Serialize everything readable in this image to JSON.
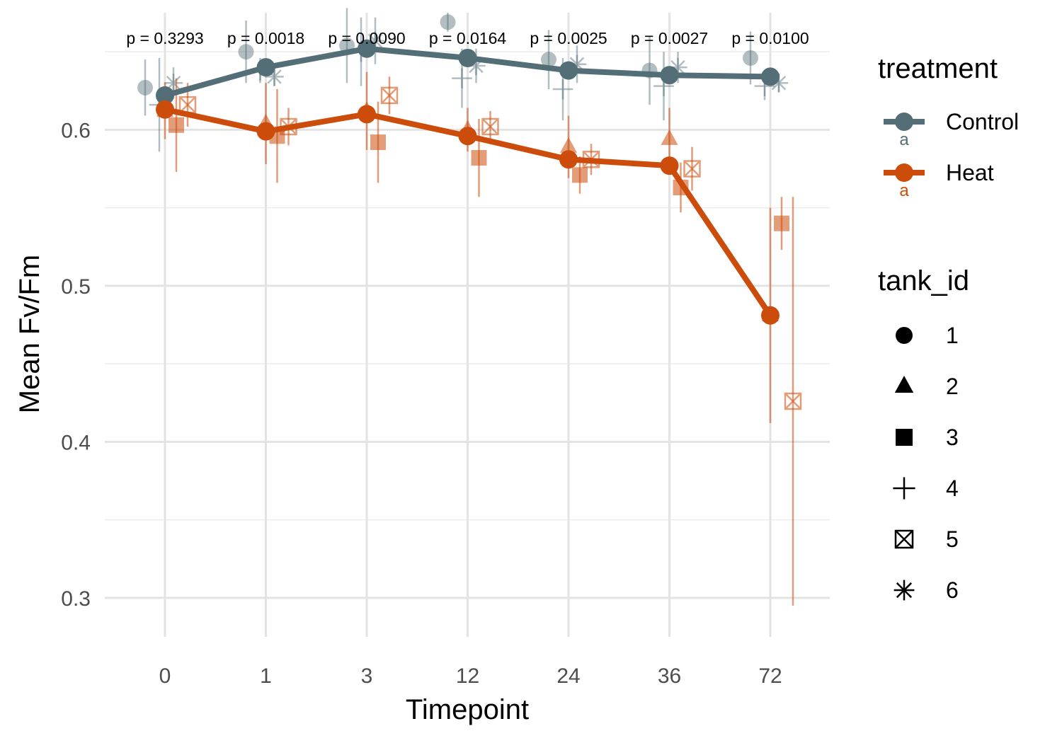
{
  "chart_data": {
    "type": "line",
    "title": "",
    "xlabel": "Timepoint",
    "ylabel": "Mean Fv/Fm",
    "categories": [
      "0",
      "1",
      "3",
      "12",
      "24",
      "36",
      "72"
    ],
    "ylim": [
      0.275,
      0.675
    ],
    "yticks": [
      0.3,
      0.4,
      0.5,
      0.6
    ],
    "ytick_labels": [
      "0.3",
      "0.4",
      "0.5",
      "0.6"
    ],
    "grid": true,
    "legend_position": "right",
    "p_values": [
      "p = 0.3293",
      "p = 0.0018",
      "p = 0.0090",
      "p = 0.0164",
      "p = 0.0025",
      "p = 0.0027",
      "p = 0.0100"
    ],
    "colors": {
      "Control": "#546e78",
      "Heat": "#cc4c0b"
    },
    "series": [
      {
        "name": "Control",
        "values": [
          0.622,
          0.64,
          0.652,
          0.646,
          0.638,
          0.635,
          0.634
        ]
      },
      {
        "name": "Heat",
        "values": [
          0.613,
          0.599,
          0.61,
          0.596,
          0.581,
          0.577,
          0.481
        ]
      }
    ],
    "tank_points": {
      "Control": [
        {
          "tank": "1",
          "values": [
            0.627,
            0.65,
            0.654,
            0.669,
            0.645,
            0.638,
            0.646
          ],
          "errors": [
            0.018,
            0.02,
            0.024,
            0.006,
            0.019,
            0.022,
            0.017
          ]
        },
        {
          "tank": "4",
          "values": [
            0.616,
            0.638,
            0.65,
            0.633,
            0.626,
            0.628,
            0.628
          ],
          "errors": [
            0.03,
            0.008,
            0.022,
            0.019,
            0.02,
            0.022,
            0.009
          ]
        },
        {
          "tank": "6",
          "values": [
            0.63,
            0.634,
            0.657,
            0.641,
            0.642,
            0.64,
            0.63
          ],
          "errors": [
            0.01,
            0.006,
            0.015,
            0.011,
            0.012,
            0.01,
            0.006
          ]
        }
      ],
      "Heat": [
        {
          "tank": "2",
          "values": [
            0.612,
            0.604,
            0.612,
            0.6,
            0.589,
            0.594,
            0.481
          ],
          "errors": [
            0.018,
            0.026,
            0.025,
            0.014,
            0.02,
            0.02,
            0.069
          ]
        },
        {
          "tank": "3",
          "values": [
            0.603,
            0.596,
            0.592,
            0.582,
            0.571,
            0.563,
            0.54
          ],
          "errors": [
            0.03,
            0.03,
            0.026,
            0.025,
            0.012,
            0.016,
            0.017
          ]
        },
        {
          "tank": "5",
          "values": [
            0.616,
            0.602,
            0.622,
            0.602,
            0.581,
            0.575,
            0.426
          ],
          "errors": [
            0.014,
            0.012,
            0.012,
            0.01,
            0.01,
            0.014,
            0.131
          ]
        }
      ]
    }
  },
  "legend": {
    "treatment_title": "treatment",
    "treatment_items": [
      {
        "label": "Control",
        "key_text": "a"
      },
      {
        "label": "Heat",
        "key_text": "a"
      }
    ],
    "tank_title": "tank_id",
    "tank_items": [
      {
        "label": "1",
        "shape": "circle-icon"
      },
      {
        "label": "2",
        "shape": "triangle-icon"
      },
      {
        "label": "3",
        "shape": "square-icon"
      },
      {
        "label": "4",
        "shape": "plus-icon"
      },
      {
        "label": "5",
        "shape": "boxed-x-icon"
      },
      {
        "label": "6",
        "shape": "asterisk-icon"
      }
    ]
  }
}
